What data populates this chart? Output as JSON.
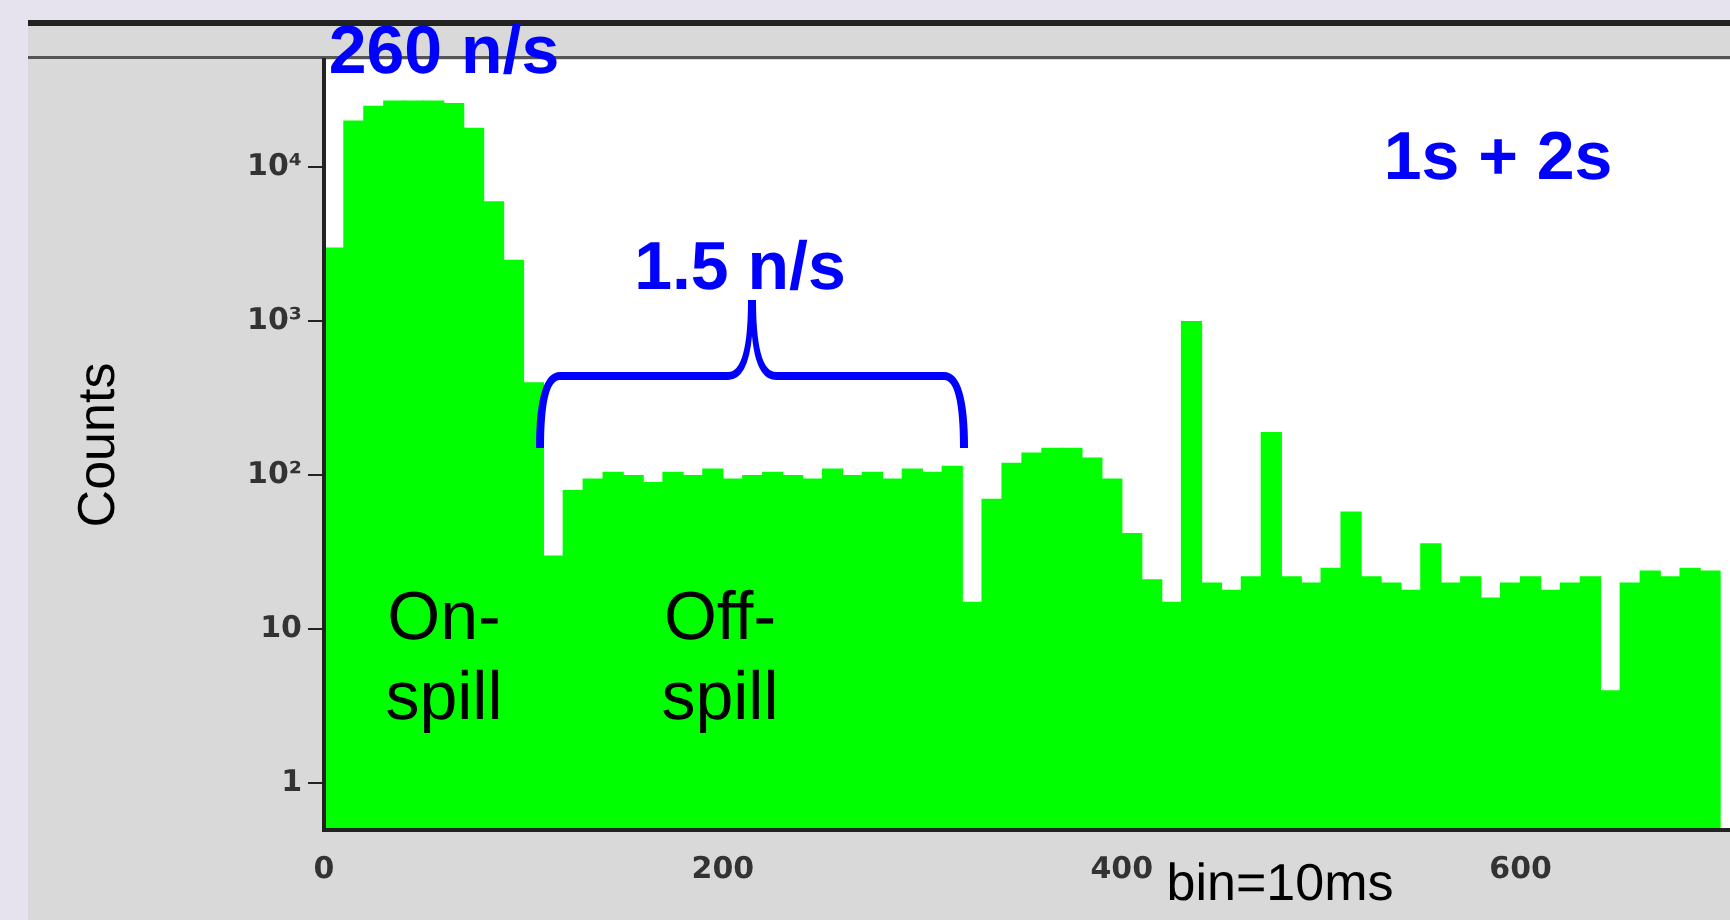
{
  "chart_data": {
    "type": "histogram",
    "xlabel": "bin=10ms",
    "ylabel": "Counts",
    "color": "#00ff00",
    "log": "y",
    "bins": [
      0,
      10,
      20,
      30,
      40,
      50,
      60,
      70,
      80,
      90,
      100,
      110,
      120,
      130,
      140,
      150,
      160,
      170,
      180,
      190,
      200,
      210,
      220,
      230,
      240,
      250,
      260,
      270,
      280,
      290,
      300,
      310,
      320,
      330,
      340,
      350,
      360,
      370,
      380,
      390,
      400,
      410,
      420,
      430,
      440,
      450,
      460,
      470,
      480,
      490,
      500,
      510,
      520,
      530,
      540,
      550,
      560,
      570,
      580,
      590,
      600,
      610,
      620,
      630,
      640,
      650,
      660,
      670,
      680,
      690,
      700
    ],
    "values": [
      3000,
      20000,
      25000,
      27000,
      27000,
      27000,
      26000,
      18000,
      6000,
      2500,
      400,
      30,
      80,
      95,
      105,
      100,
      90,
      105,
      100,
      110,
      95,
      100,
      105,
      100,
      95,
      110,
      100,
      105,
      95,
      110,
      105,
      115,
      15,
      70,
      120,
      140,
      150,
      150,
      130,
      95,
      42,
      21,
      15,
      1000,
      20,
      18,
      22,
      190,
      22,
      20,
      25,
      58,
      22,
      20,
      18,
      36,
      20,
      22,
      16,
      20,
      22,
      18,
      20,
      22,
      4,
      20,
      24,
      22,
      25,
      24
    ],
    "xlim": [
      0,
      705
    ],
    "xticks": [
      0,
      200,
      400,
      600
    ],
    "ylim": [
      0.5,
      50000
    ],
    "yticks": [
      1,
      10,
      {
        "value": 100,
        "label": "10²"
      },
      {
        "value": 1000,
        "label": "10³"
      },
      {
        "value": 10000,
        "label": "10⁴"
      }
    ],
    "annotations": [
      "260 n/s",
      "1.5 n/s",
      "1s + 2s",
      "On-\nspill",
      "Off-\nspill"
    ]
  }
}
